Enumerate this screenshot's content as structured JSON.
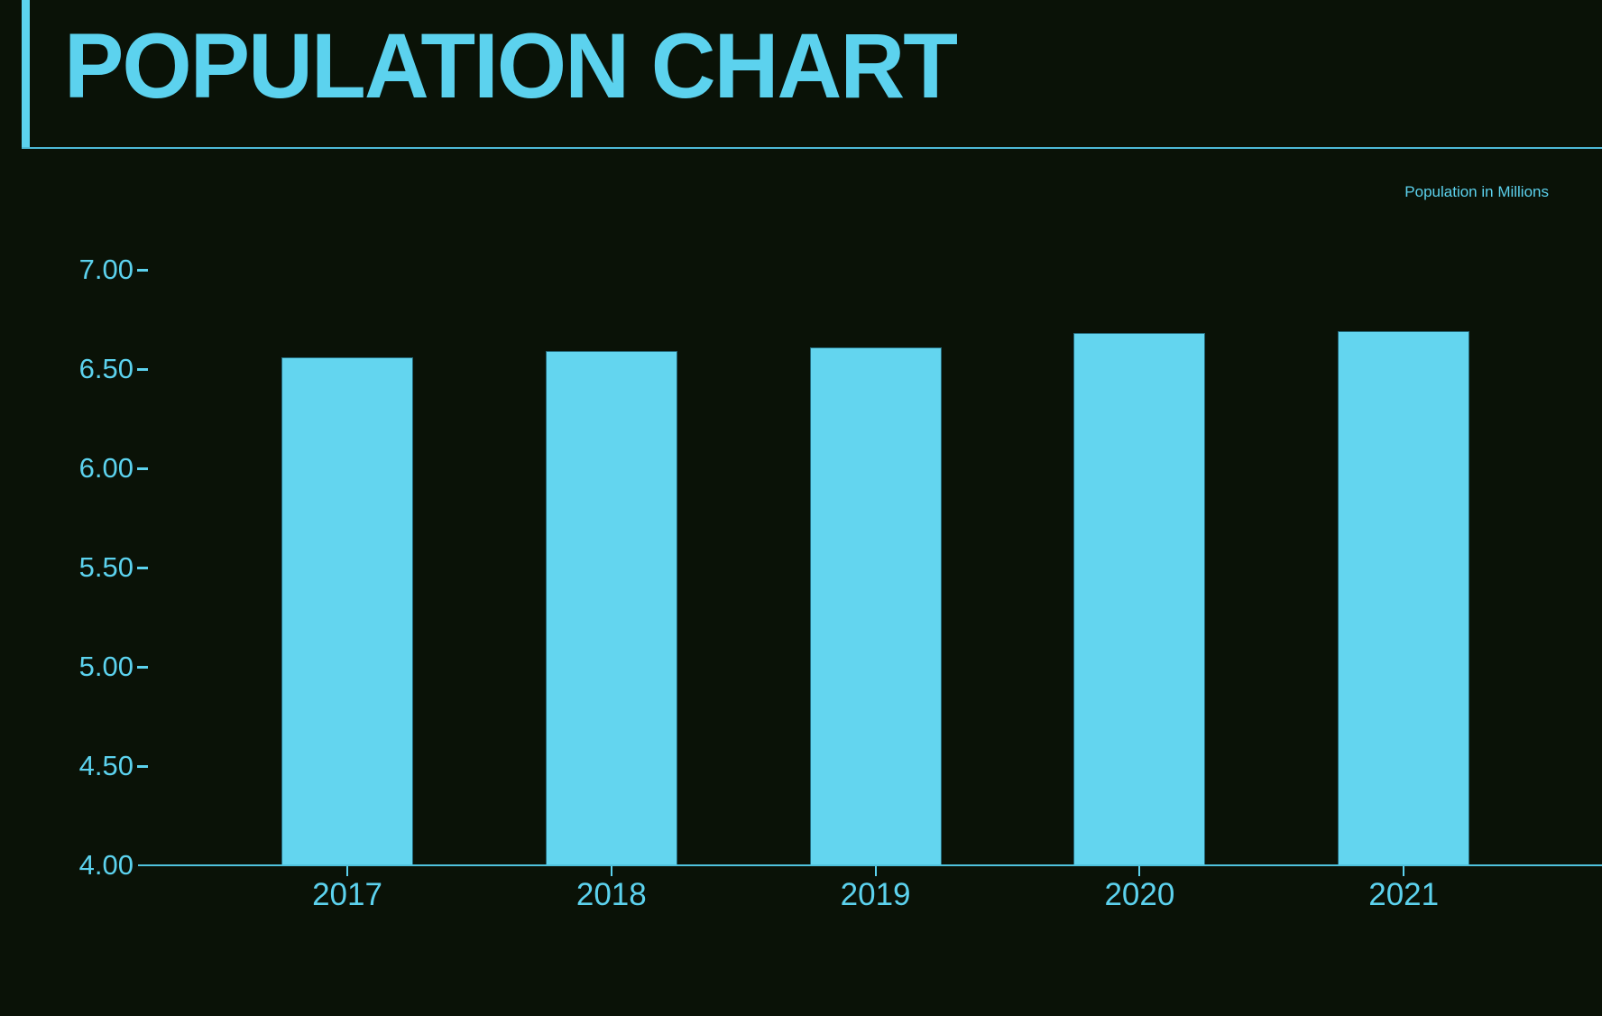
{
  "header": {
    "title": "POPULATION CHART"
  },
  "legend": {
    "label": "Population in Millions"
  },
  "colors": {
    "background": "#0a1207",
    "accent": "#5cd2ee",
    "bar_fill": "#63d5ef",
    "bar_border": "#1f5f70",
    "axis": "#4fc2dd"
  },
  "chart_data": {
    "type": "bar",
    "title": "POPULATION CHART",
    "categories": [
      "2017",
      "2018",
      "2019",
      "2020",
      "2021"
    ],
    "values": [
      6.56,
      6.59,
      6.61,
      6.68,
      6.69
    ],
    "xlabel": "",
    "ylabel": "Population in Millions",
    "ylim": [
      4.0,
      7.0
    ],
    "ytick_step": 0.5,
    "ytick_labels": [
      "7.00",
      "6.50",
      "6.00",
      "5.50",
      "5.00",
      "4.50",
      "4.00"
    ],
    "grid": false,
    "legend_position": "top-right",
    "legend_entries": [
      "Population in Millions"
    ]
  }
}
